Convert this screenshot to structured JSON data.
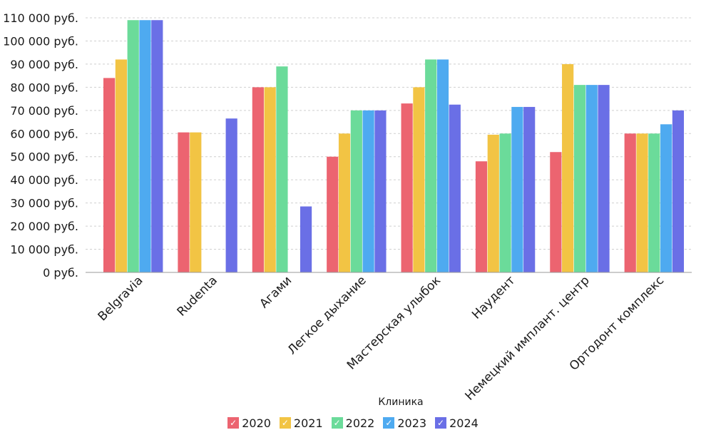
{
  "chart_data": {
    "type": "bar",
    "title": "",
    "xlabel": "Клиника",
    "ylabel": "",
    "ylim": [
      0,
      110000
    ],
    "y_ticks": [
      "0 руб.",
      "10 000 руб.",
      "20 000 руб.",
      "30 000 руб.",
      "40 000 руб.",
      "50 000 руб.",
      "60 000 руб.",
      "70 000 руб.",
      "80 000 руб.",
      "90 000 руб.",
      "100 000 руб.",
      "110 000 руб."
    ],
    "grid": "horizontal dashed",
    "legend_position": "bottom-center",
    "categories": [
      "Belgravia",
      "Rudenta",
      "Агами",
      "Легкое дыхание",
      "Мастерская улыбок",
      "Наудент",
      "Немецкий имплант. центр",
      "Ортодонт комплекс"
    ],
    "series": [
      {
        "name": "2020",
        "color": "#ec6470",
        "values": [
          84000,
          60500,
          80000,
          50000,
          73000,
          48000,
          52000,
          60000
        ]
      },
      {
        "name": "2021",
        "color": "#f2c444",
        "values": [
          92000,
          60500,
          80000,
          60000,
          80000,
          59500,
          90000,
          60000
        ]
      },
      {
        "name": "2022",
        "color": "#6bdb9a",
        "values": [
          109000,
          null,
          89000,
          70000,
          92000,
          60000,
          81000,
          60000
        ]
      },
      {
        "name": "2023",
        "color": "#4eaaf0",
        "values": [
          109000,
          null,
          null,
          70000,
          92000,
          71500,
          81000,
          64000
        ]
      },
      {
        "name": "2024",
        "color": "#6a6fe6",
        "values": [
          109000,
          66500,
          28500,
          70000,
          72500,
          71500,
          81000,
          70000
        ]
      }
    ],
    "legend_check": "✓"
  }
}
